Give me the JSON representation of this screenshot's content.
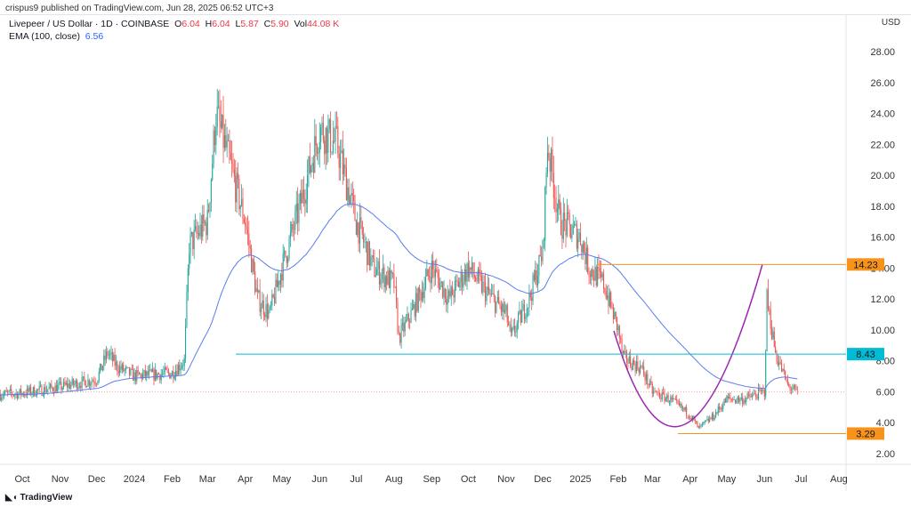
{
  "published": "crispus9 published on TradingView.com, Jun 28, 2025 06:52 UTC+3",
  "legend": {
    "symbol": "Livepeer / US Dollar · 1D · COINBASE",
    "o_label": "O",
    "o": "6.04",
    "h_label": "H",
    "h": "6.04",
    "l_label": "L",
    "l": "5.87",
    "c_label": "C",
    "c": "5.90",
    "vol_label": "Vol",
    "vol": "44.08 K",
    "ema_label": "EMA (100, close)",
    "ema": "6.56"
  },
  "currency": "USD",
  "footer": "TradingView",
  "colors": {
    "up": "#26a69a",
    "down": "#ef5350",
    "ema": "#5b7cf0",
    "orange": "#f7931a",
    "cyan": "#00bcd4",
    "curve": "#9c27b0"
  },
  "chart_data": {
    "type": "candlestick",
    "title": "Livepeer / US Dollar · 1D · COINBASE",
    "ylim": [
      1,
      29
    ],
    "y_ticks": [
      "2.00",
      "4.00",
      "6.00",
      "8.00",
      "10.00",
      "12.00",
      "14.00",
      "16.00",
      "18.00",
      "20.00",
      "22.00",
      "24.00",
      "26.00",
      "28.00"
    ],
    "x_ticks": [
      {
        "label": "Oct",
        "day": 0
      },
      {
        "label": "Nov",
        "day": 31
      },
      {
        "label": "Dec",
        "day": 61
      },
      {
        "label": "2024",
        "day": 92
      },
      {
        "label": "Feb",
        "day": 123
      },
      {
        "label": "Mar",
        "day": 152
      },
      {
        "label": "Apr",
        "day": 183
      },
      {
        "label": "May",
        "day": 213
      },
      {
        "label": "Jun",
        "day": 244
      },
      {
        "label": "Jul",
        "day": 274
      },
      {
        "label": "Aug",
        "day": 305
      },
      {
        "label": "Sep",
        "day": 336
      },
      {
        "label": "Oct",
        "day": 366
      },
      {
        "label": "Nov",
        "day": 397
      },
      {
        "label": "Dec",
        "day": 427
      },
      {
        "label": "2025",
        "day": 458
      },
      {
        "label": "Feb",
        "day": 489
      },
      {
        "label": "Mar",
        "day": 517
      },
      {
        "label": "Apr",
        "day": 548
      },
      {
        "label": "May",
        "day": 578
      },
      {
        "label": "Jun",
        "day": 609
      },
      {
        "label": "Jul",
        "day": 639
      },
      {
        "label": "Aug",
        "day": 670
      }
    ],
    "close_path_day_price": [
      [
        -20,
        5.8
      ],
      [
        0,
        5.9
      ],
      [
        31,
        6.3
      ],
      [
        61,
        6.8
      ],
      [
        70,
        8.5
      ],
      [
        78,
        7.6
      ],
      [
        92,
        7.0
      ],
      [
        123,
        7.2
      ],
      [
        133,
        8.0
      ],
      [
        137,
        15.5
      ],
      [
        152,
        17
      ],
      [
        159,
        24
      ],
      [
        166,
        22
      ],
      [
        183,
        17
      ],
      [
        193,
        12
      ],
      [
        203,
        11
      ],
      [
        213,
        14
      ],
      [
        228,
        18
      ],
      [
        244,
        23
      ],
      [
        258,
        22
      ],
      [
        274,
        17
      ],
      [
        288,
        14
      ],
      [
        305,
        13
      ],
      [
        309,
        9.5
      ],
      [
        319,
        11
      ],
      [
        336,
        14
      ],
      [
        350,
        12
      ],
      [
        366,
        14
      ],
      [
        380,
        12.5
      ],
      [
        397,
        11
      ],
      [
        401,
        9.5
      ],
      [
        416,
        12
      ],
      [
        427,
        15
      ],
      [
        431,
        22
      ],
      [
        441,
        17
      ],
      [
        458,
        16
      ],
      [
        465,
        14
      ],
      [
        477,
        13
      ],
      [
        489,
        10
      ],
      [
        493,
        8.2
      ],
      [
        508,
        7.5
      ],
      [
        517,
        6
      ],
      [
        531,
        5.5
      ],
      [
        548,
        4.5
      ],
      [
        555,
        3.6
      ],
      [
        567,
        4.4
      ],
      [
        578,
        5.5
      ],
      [
        592,
        5.5
      ],
      [
        609,
        6.0
      ],
      [
        611,
        12
      ],
      [
        618,
        8.5
      ],
      [
        628,
        6.4
      ],
      [
        636,
        5.9
      ]
    ],
    "ema_period": 100,
    "levels": [
      {
        "label": "14.23",
        "value": 14.23,
        "color": "orange"
      },
      {
        "label": "8.43",
        "value": 8.43,
        "color": "cyan"
      },
      {
        "label": "3.29",
        "value": 3.29,
        "color": "orange"
      }
    ],
    "current_price": 6.0
  }
}
